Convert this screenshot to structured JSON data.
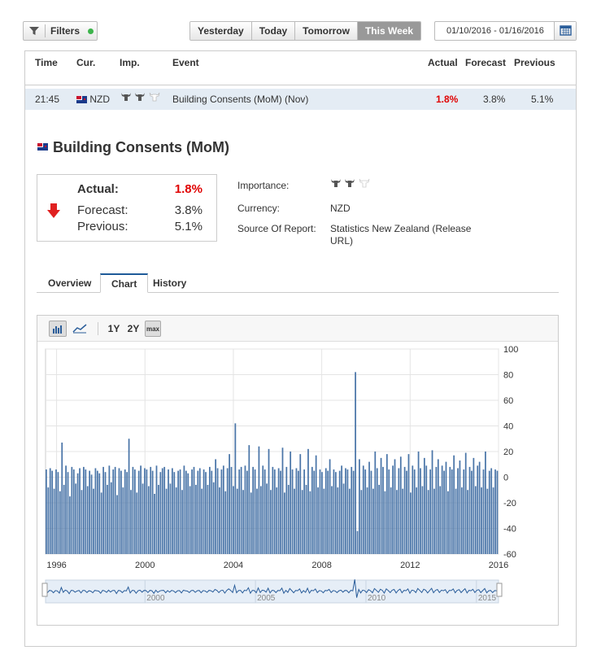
{
  "toolbar": {
    "filters_label": "Filters",
    "periods": [
      "Yesterday",
      "Today",
      "Tomorrow",
      "This Week"
    ],
    "active_period": "This Week",
    "date_range": "01/10/2016 - 01/16/2016"
  },
  "table": {
    "headers": {
      "time": "Time",
      "cur": "Cur.",
      "imp": "Imp.",
      "event": "Event",
      "actual": "Actual",
      "forecast": "Forecast",
      "previous": "Previous"
    },
    "row": {
      "time": "21:45",
      "currency": "NZD",
      "importance": 2,
      "event": "Building Consents (MoM) (Nov)",
      "actual": "1.8%",
      "forecast": "3.8%",
      "previous": "5.1%"
    }
  },
  "detail": {
    "title": "Building Consents (MoM)",
    "actual_label": "Actual:",
    "actual": "1.8%",
    "forecast_label": "Forecast:",
    "forecast": "3.8%",
    "previous_label": "Previous:",
    "previous": "5.1%",
    "importance_label": "Importance:",
    "importance": 2,
    "currency_label": "Currency:",
    "currency": "NZD",
    "source_label": "Source Of Report:",
    "source_line1": "Statistics New Zealand (Release",
    "source_line2": "URL)"
  },
  "tabs": [
    "Overview",
    "Chart",
    "History"
  ],
  "active_tab": "Chart",
  "chart_toolbar": {
    "range_1y": "1Y",
    "range_2y": "2Y",
    "range_max": "max"
  },
  "colors": {
    "actual_down": "#e00000",
    "bar": "#4a75a8",
    "active_tab_border": "#1e5a99",
    "row_highlight": "#e4ecf4"
  },
  "chart_data": {
    "type": "bar",
    "x_ticks": [
      "1996",
      "2000",
      "2004",
      "2008",
      "2012",
      "2016"
    ],
    "y_ticks": [
      100,
      80,
      60,
      40,
      20,
      0,
      -20,
      -40,
      -60
    ],
    "ylim": [
      -60,
      100
    ],
    "xlim": [
      1995.5,
      2016.0
    ],
    "grid": true,
    "series_start": 1995.5,
    "values": [
      6,
      -8,
      7,
      5,
      -9,
      6,
      4,
      -11,
      27,
      -6,
      9,
      4,
      -15,
      8,
      6,
      -5,
      3,
      7,
      -10,
      8,
      6,
      -7,
      5,
      2,
      -9,
      7,
      5,
      3,
      -12,
      8,
      4,
      -6,
      9,
      -4,
      6,
      8,
      -14,
      7,
      5,
      -8,
      6,
      4,
      30,
      -10,
      8,
      6,
      -12,
      5,
      9,
      -5,
      7,
      6,
      -7,
      8,
      5,
      -13,
      9,
      -6,
      4,
      7,
      8,
      -9,
      6,
      -5,
      7,
      4,
      -8,
      5,
      6,
      -10,
      9,
      5,
      3,
      -7,
      6,
      8,
      -6,
      5,
      7,
      -9,
      6,
      4,
      -6,
      8,
      5,
      -4,
      14,
      7,
      -8,
      6,
      9,
      -11,
      7,
      18,
      8,
      -7,
      42,
      -9,
      6,
      8,
      -10,
      9,
      5,
      25,
      -12,
      8,
      6,
      -9,
      24,
      -7,
      9,
      6,
      -5,
      22,
      -10,
      8,
      6,
      -8,
      7,
      5,
      23,
      -12,
      8,
      -6,
      20,
      6,
      -9,
      7,
      5,
      18,
      -10,
      6,
      -6,
      22,
      -11,
      8,
      5,
      17,
      -8,
      6,
      4,
      -9,
      7,
      5,
      14,
      -7,
      6,
      4,
      -8,
      5,
      9,
      -5,
      7,
      6,
      -9,
      8,
      5,
      82,
      -42,
      14,
      -10,
      9,
      6,
      -8,
      12,
      5,
      -9,
      20,
      7,
      -6,
      15,
      8,
      -11,
      18,
      6,
      -8,
      9,
      14,
      -10,
      7,
      16,
      -9,
      8,
      5,
      18,
      -12,
      9,
      6,
      -8,
      20,
      7,
      -7,
      15,
      9,
      -10,
      6,
      21,
      -9,
      8,
      14,
      -7,
      9,
      5,
      12,
      -11,
      8,
      6,
      17,
      -9,
      7,
      13,
      -8,
      6,
      19,
      -10,
      8,
      5,
      15,
      -7,
      9,
      12,
      -8,
      6,
      20,
      -9,
      5,
      7,
      -8,
      6,
      5
    ]
  },
  "navigator": {
    "ticks": [
      "2000",
      "2005",
      "2010",
      "2015"
    ]
  }
}
